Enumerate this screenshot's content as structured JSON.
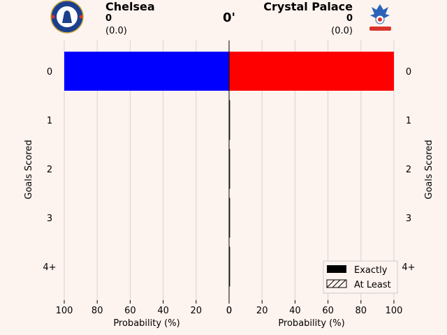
{
  "match": {
    "minute": "0'",
    "home": {
      "name": "Chelsea",
      "score": "0",
      "xg": "(0.0)",
      "color": "#0000ff",
      "crest_icon": "chelsea-crest-icon"
    },
    "away": {
      "name": "Crystal Palace",
      "score": "0",
      "xg": "(0.0)",
      "color": "#ff0000",
      "crest_icon": "crystal-palace-crest-icon"
    }
  },
  "chart_data": {
    "type": "bar",
    "orientation": "horizontal-mirrored",
    "categories": [
      "0",
      "1",
      "2",
      "3",
      "4+"
    ],
    "series": [
      {
        "name": "Chelsea",
        "values": [
          100,
          0,
          0,
          0,
          0
        ],
        "color": "#0000ff"
      },
      {
        "name": "Crystal Palace",
        "values": [
          100,
          0,
          0,
          0,
          0
        ],
        "color": "#ff0000"
      }
    ],
    "xlabel": "Probability (%)",
    "ylabel": "Goals Scored",
    "xlim": [
      0,
      100
    ],
    "xticks": [
      "100",
      "80",
      "60",
      "40",
      "20",
      "0",
      "0",
      "20",
      "40",
      "60",
      "80",
      "100"
    ],
    "grid": true,
    "legend": {
      "placement": "bottom-right",
      "entries": [
        "Exactly",
        "At Least"
      ]
    }
  }
}
